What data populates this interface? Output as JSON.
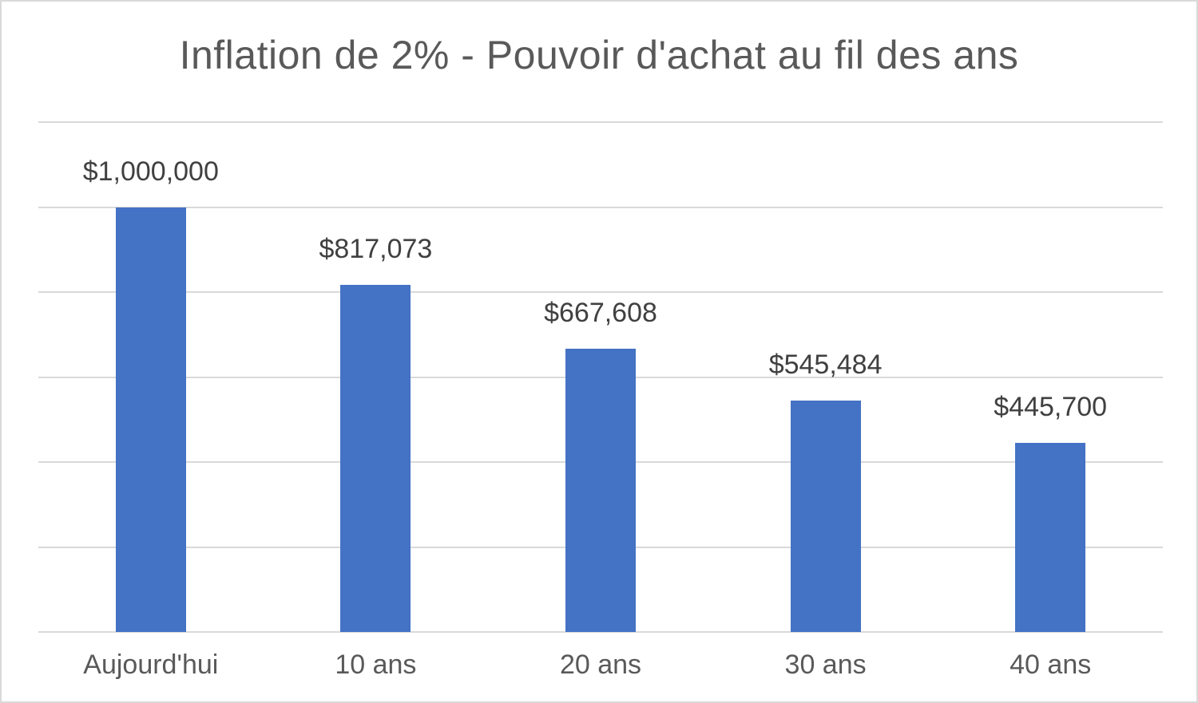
{
  "chart_data": {
    "type": "bar",
    "title": "Inflation de 2% - Pouvoir d'achat au fil des ans",
    "categories": [
      "Aujourd'hui",
      "10 ans",
      "20 ans",
      "30 ans",
      "40 ans"
    ],
    "values": [
      1000000,
      817073,
      667608,
      545484,
      445700
    ],
    "data_labels": [
      "$1,000,000",
      "$817,073",
      "$667,608",
      "$545,484",
      "$445,700"
    ],
    "xlabel": "",
    "ylabel": "",
    "ylim": [
      0,
      1200000
    ],
    "gridline_interval": 200000,
    "grid": true,
    "legend": false,
    "y_tick_labels_visible": false,
    "colors": {
      "bar": "#4472C4",
      "gridline": "#d9d9d9",
      "axis_line": "#d9d9d9",
      "title_text": "#595959",
      "data_label_text": "#404040",
      "category_text": "#595959",
      "frame_border": "#d9d9d9",
      "background": "#ffffff"
    }
  }
}
